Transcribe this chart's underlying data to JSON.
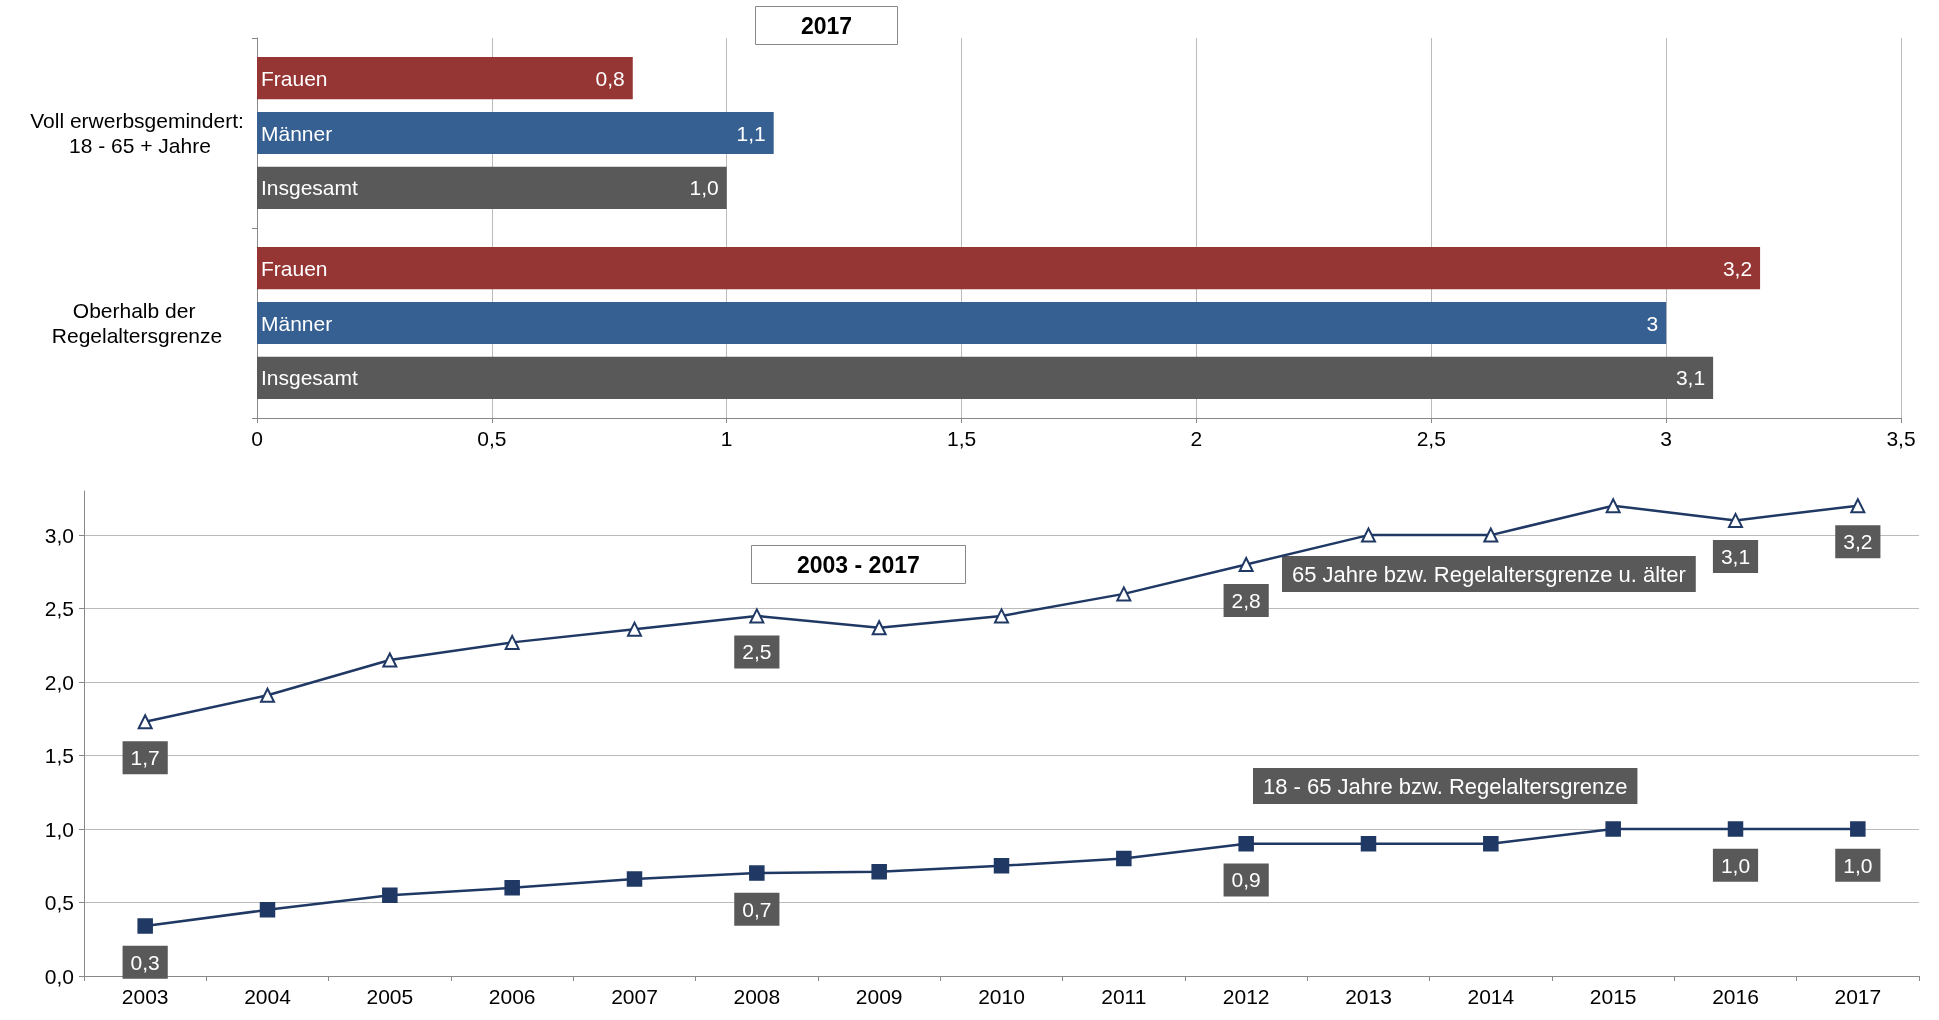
{
  "chart_data": [
    {
      "type": "bar",
      "orientation": "horizontal",
      "title": "2017",
      "categories": [
        "Voll erwerbsgemindert: 18 - 65 + Jahre",
        "Oberhalb der Regelaltersgrenze"
      ],
      "series": [
        {
          "name": "Frauen",
          "color": "#963634",
          "values": [
            0.8,
            3.2
          ],
          "value_labels": [
            "0,8",
            "3,2"
          ]
        },
        {
          "name": "Männer",
          "color": "#366092",
          "values": [
            1.1,
            3
          ],
          "value_labels": [
            "1,1",
            "3"
          ]
        },
        {
          "name": "Insgesamt",
          "color": "#595959",
          "values": [
            1.0,
            3.1
          ],
          "value_labels": [
            "1,0",
            "3,1"
          ]
        }
      ],
      "xlim": [
        0,
        3.5
      ],
      "xticks": [
        0,
        {
          "value": 0.5,
          "label": "0,5"
        },
        1,
        {
          "value": 1.5,
          "label": "1,5"
        },
        2,
        {
          "value": 2.5,
          "label": "2,5"
        },
        3,
        {
          "value": 3.5,
          "label": "3,5"
        }
      ],
      "grid": "x",
      "legend": false
    },
    {
      "type": "line",
      "title": "2003 - 2017",
      "categories": [
        "2003",
        "2004",
        "2005",
        "2006",
        "2007",
        "2008",
        "2009",
        "2010",
        "2011",
        "2012",
        "2013",
        "2014",
        "2015",
        "2016",
        "2017"
      ],
      "series": [
        {
          "name": "65 Jahre bzw. Regelaltersgrenze u. älter",
          "color": "#1f3864",
          "marker": "triangle",
          "values": [
            1.73,
            1.91,
            2.15,
            2.27,
            2.36,
            2.45,
            2.37,
            2.45,
            2.6,
            2.8,
            3.0,
            3.0,
            3.2,
            3.1,
            3.2
          ],
          "value_labels": [
            "1,7",
            null,
            null,
            null,
            null,
            "2,5",
            null,
            null,
            null,
            "2,8",
            null,
            null,
            null,
            "3,1",
            "3,2"
          ]
        },
        {
          "name": "18 - 65 Jahre bzw. Regelaltersgrenze",
          "color": "#1f3864",
          "marker": "square",
          "values": [
            0.34,
            0.45,
            0.55,
            0.6,
            0.66,
            0.7,
            0.71,
            0.75,
            0.8,
            0.9,
            0.9,
            0.9,
            1.0,
            1.0,
            1.0
          ],
          "value_labels": [
            "0,3",
            null,
            null,
            null,
            null,
            "0,7",
            null,
            null,
            null,
            "0,9",
            null,
            null,
            null,
            "1,0",
            "1,0"
          ]
        }
      ],
      "ylim": [
        0,
        3.3
      ],
      "yticks": [
        {
          "value": 0,
          "label": "0,0"
        },
        {
          "value": 0.5,
          "label": "0,5"
        },
        {
          "value": 1,
          "label": "1,0"
        },
        {
          "value": 1.5,
          "label": "1,5"
        },
        {
          "value": 2,
          "label": "2,0"
        },
        {
          "value": 2.5,
          "label": "2,5"
        },
        {
          "value": 3,
          "label": "3,0"
        }
      ],
      "grid": "y",
      "legend": false,
      "line_style": "solid"
    }
  ]
}
